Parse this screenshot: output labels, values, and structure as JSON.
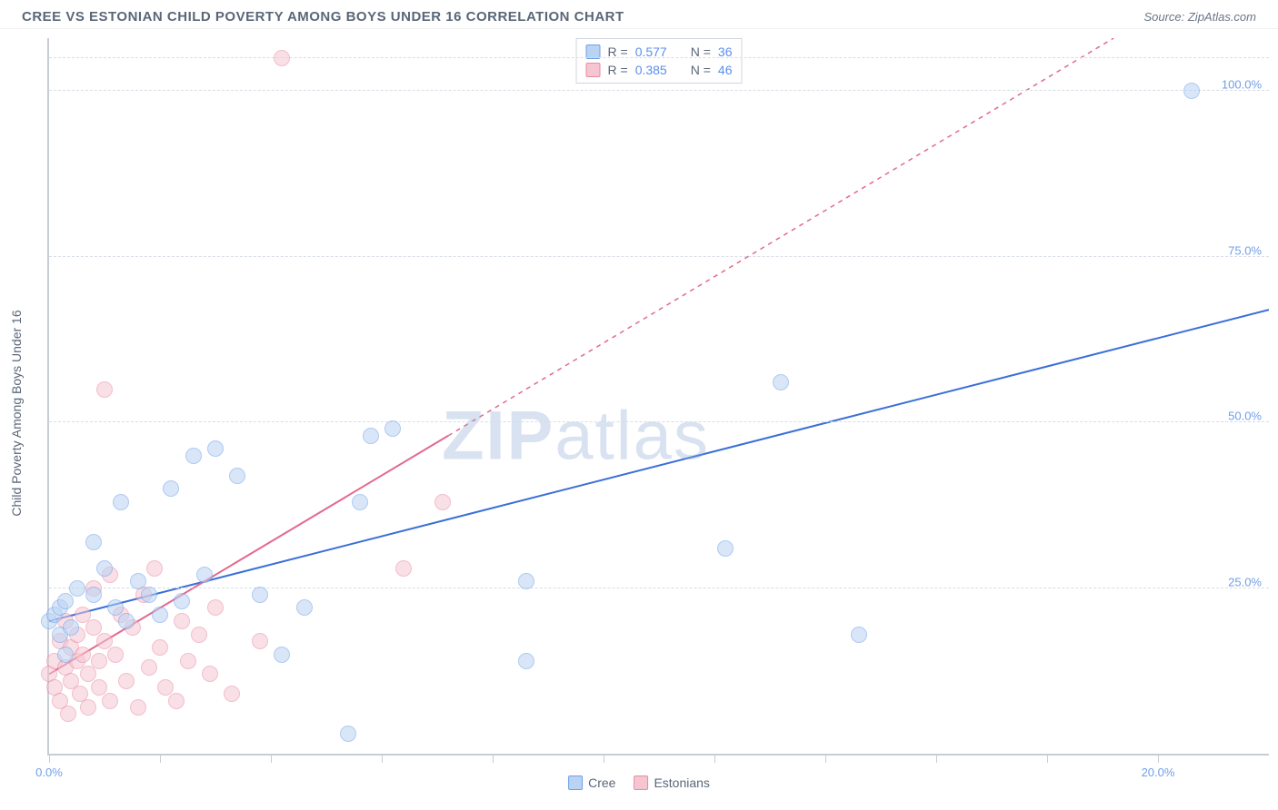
{
  "header": {
    "title": "CREE VS ESTONIAN CHILD POVERTY AMONG BOYS UNDER 16 CORRELATION CHART",
    "source_prefix": "Source: ",
    "source": "ZipAtlas.com"
  },
  "chart": {
    "type": "scatter",
    "ylabel": "Child Poverty Among Boys Under 16",
    "xlim": [
      0,
      22
    ],
    "ylim": [
      0,
      108
    ],
    "xticks": [
      0,
      2,
      4,
      6,
      8,
      10,
      12,
      14,
      16,
      18,
      20
    ],
    "xtick_labels": {
      "0": "0.0%",
      "20": "20.0%"
    },
    "yticks": [
      25,
      50,
      75,
      100
    ],
    "ytick_labels": {
      "25": "25.0%",
      "50": "50.0%",
      "75": "75.0%",
      "100": "100.0%"
    },
    "grid_color": "#d8dde6",
    "axis_color": "#c8ccd4",
    "background_color": "#ffffff",
    "watermark": "ZIPatlas",
    "watermark_color": "rgba(135,165,210,0.32)",
    "point_radius": 9,
    "point_opacity": 0.55,
    "series": [
      {
        "name": "Cree",
        "color_fill": "#b9d3f3",
        "color_stroke": "#6f9fe8",
        "R": "0.577",
        "N": "36",
        "trend": {
          "x1": 0,
          "y1": 20,
          "x2": 22,
          "y2": 67,
          "stroke": "#3a6fd8",
          "width": 2,
          "dash": "none"
        },
        "points": [
          [
            0.0,
            20
          ],
          [
            0.1,
            21
          ],
          [
            0.2,
            18
          ],
          [
            0.2,
            22
          ],
          [
            0.3,
            15
          ],
          [
            0.3,
            23
          ],
          [
            0.4,
            19
          ],
          [
            0.5,
            25
          ],
          [
            0.8,
            32
          ],
          [
            0.8,
            24
          ],
          [
            1.0,
            28
          ],
          [
            1.2,
            22
          ],
          [
            1.3,
            38
          ],
          [
            1.4,
            20
          ],
          [
            1.6,
            26
          ],
          [
            1.8,
            24
          ],
          [
            2.0,
            21
          ],
          [
            2.2,
            40
          ],
          [
            2.4,
            23
          ],
          [
            2.6,
            45
          ],
          [
            2.8,
            27
          ],
          [
            3.0,
            46
          ],
          [
            3.4,
            42
          ],
          [
            3.8,
            24
          ],
          [
            4.2,
            15
          ],
          [
            4.6,
            22
          ],
          [
            5.4,
            3
          ],
          [
            5.6,
            38
          ],
          [
            5.8,
            48
          ],
          [
            6.2,
            49
          ],
          [
            8.6,
            26
          ],
          [
            8.6,
            14
          ],
          [
            12.2,
            31
          ],
          [
            13.2,
            56
          ],
          [
            14.6,
            18
          ],
          [
            20.6,
            100
          ]
        ]
      },
      {
        "name": "Estonians",
        "color_fill": "#f5c6d2",
        "color_stroke": "#e98aa4",
        "R": "0.385",
        "N": "46",
        "trend": {
          "x1": 0,
          "y1": 12,
          "x2": 7.2,
          "y2": 48,
          "extend_x2": 22,
          "extend_y2": 122,
          "stroke": "#e26a8f",
          "width": 2,
          "dash": "5,5"
        },
        "points": [
          [
            0.0,
            12
          ],
          [
            0.1,
            14
          ],
          [
            0.1,
            10
          ],
          [
            0.2,
            17
          ],
          [
            0.2,
            8
          ],
          [
            0.3,
            20
          ],
          [
            0.3,
            13
          ],
          [
            0.35,
            6
          ],
          [
            0.4,
            16
          ],
          [
            0.4,
            11
          ],
          [
            0.5,
            18
          ],
          [
            0.5,
            14
          ],
          [
            0.55,
            9
          ],
          [
            0.6,
            21
          ],
          [
            0.6,
            15
          ],
          [
            0.7,
            12
          ],
          [
            0.7,
            7
          ],
          [
            0.8,
            19
          ],
          [
            0.8,
            25
          ],
          [
            0.9,
            14
          ],
          [
            0.9,
            10
          ],
          [
            1.0,
            55
          ],
          [
            1.0,
            17
          ],
          [
            1.1,
            27
          ],
          [
            1.1,
            8
          ],
          [
            1.2,
            15
          ],
          [
            1.3,
            21
          ],
          [
            1.4,
            11
          ],
          [
            1.5,
            19
          ],
          [
            1.6,
            7
          ],
          [
            1.7,
            24
          ],
          [
            1.8,
            13
          ],
          [
            1.9,
            28
          ],
          [
            2.0,
            16
          ],
          [
            2.1,
            10
          ],
          [
            2.3,
            8
          ],
          [
            2.4,
            20
          ],
          [
            2.5,
            14
          ],
          [
            2.7,
            18
          ],
          [
            2.9,
            12
          ],
          [
            3.0,
            22
          ],
          [
            3.3,
            9
          ],
          [
            3.8,
            17
          ],
          [
            4.2,
            105
          ],
          [
            6.4,
            28
          ],
          [
            7.1,
            38
          ]
        ]
      }
    ],
    "legend_top": {
      "R_label": "R =",
      "N_label": "N ="
    },
    "legend_bottom": [
      "Cree",
      "Estonians"
    ]
  }
}
